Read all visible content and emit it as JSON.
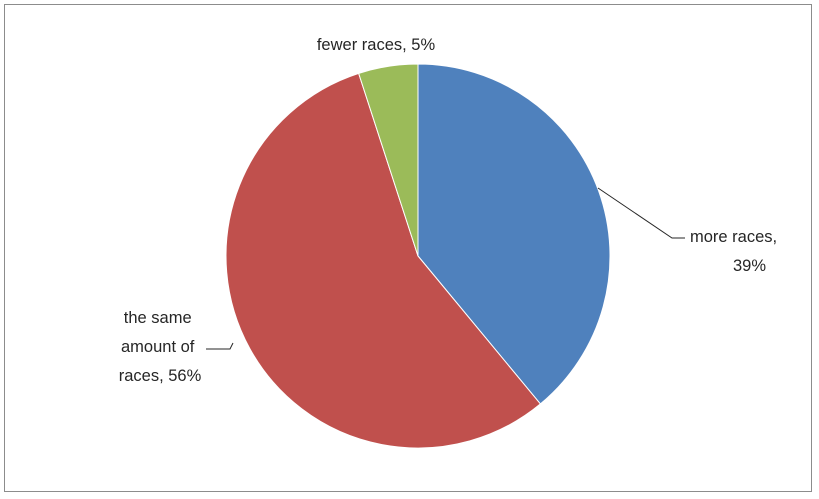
{
  "chart_data": {
    "type": "pie",
    "slices": [
      {
        "label_lines": [
          "more races,",
          "39%"
        ],
        "value": 39,
        "color": "#4F81BD"
      },
      {
        "label_lines": [
          "the same",
          "amount of",
          "races, 56%"
        ],
        "value": 56,
        "color": "#C0504D"
      },
      {
        "label_lines": [
          "fewer races, 5%"
        ],
        "value": 5,
        "color": "#9BBB59"
      }
    ],
    "start_angle_deg": 0,
    "direction": "clockwise",
    "legend": "none",
    "data_labels": "outside with leader lines"
  }
}
